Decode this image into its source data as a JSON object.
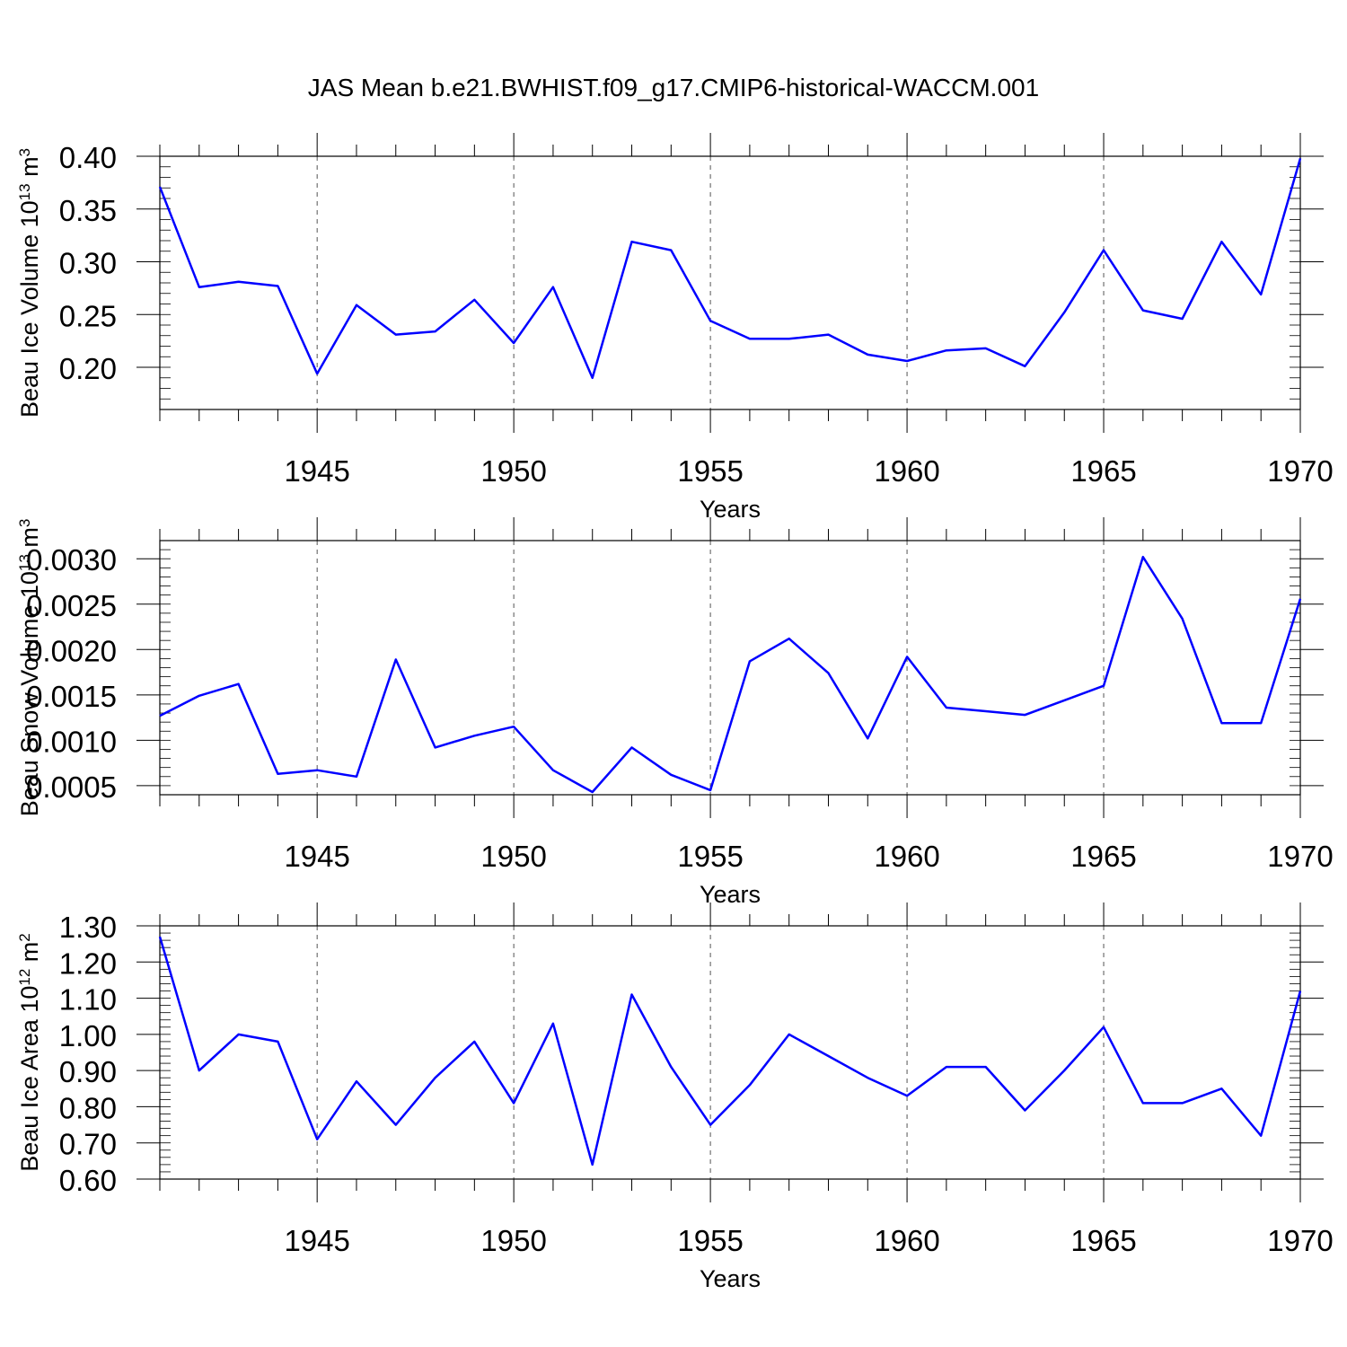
{
  "title": "JAS Mean b.e21.BWHIST.f09_g17.CMIP6-historical-WACCM.001",
  "chart_data": [
    {
      "type": "line",
      "title": "",
      "xlabel": "Years",
      "ylabel": "Beau Ice Volume 10",
      "ylabel_exp": "13",
      "ylabel_unit": " m",
      "ylabel_unit_exp": "3",
      "xlim": [
        1941,
        1970
      ],
      "ylim": [
        0.16,
        0.4
      ],
      "yticks": [
        "0.40",
        "0.35",
        "0.30",
        "0.25",
        "0.20"
      ],
      "ytick_values": [
        0.4,
        0.35,
        0.3,
        0.25,
        0.2
      ],
      "xticks": [
        1945,
        1950,
        1955,
        1960,
        1965,
        1970
      ],
      "grid": "vertical dashed",
      "color": "#0000ff",
      "x": [
        1941,
        1942,
        1943,
        1944,
        1945,
        1946,
        1947,
        1948,
        1949,
        1950,
        1951,
        1952,
        1953,
        1954,
        1955,
        1956,
        1957,
        1958,
        1959,
        1960,
        1961,
        1962,
        1963,
        1964,
        1965,
        1966,
        1967,
        1968,
        1969,
        1970
      ],
      "values": [
        0.371,
        0.276,
        0.281,
        0.277,
        0.194,
        0.259,
        0.231,
        0.234,
        0.264,
        0.223,
        0.276,
        0.19,
        0.319,
        0.311,
        0.244,
        0.227,
        0.227,
        0.231,
        0.212,
        0.206,
        0.216,
        0.218,
        0.201,
        0.252,
        0.311,
        0.254,
        0.246,
        0.319,
        0.269,
        0.398
      ]
    },
    {
      "type": "line",
      "title": "",
      "xlabel": "Years",
      "ylabel": "Beau Snow Volume 10",
      "ylabel_exp": "13",
      "ylabel_unit": " m",
      "ylabel_unit_exp": "3",
      "xlim": [
        1941,
        1970
      ],
      "ylim": [
        0.0004,
        0.0032
      ],
      "yticks": [
        "0.0030",
        "0.0025",
        "0.0020",
        "0.0015",
        "0.0010",
        "0.0005"
      ],
      "ytick_values": [
        0.003,
        0.0025,
        0.002,
        0.0015,
        0.001,
        0.0005
      ],
      "xticks": [
        1945,
        1950,
        1955,
        1960,
        1965,
        1970
      ],
      "grid": "vertical dashed",
      "color": "#0000ff",
      "x": [
        1941,
        1942,
        1943,
        1944,
        1945,
        1946,
        1947,
        1948,
        1949,
        1950,
        1951,
        1952,
        1953,
        1954,
        1955,
        1956,
        1957,
        1958,
        1959,
        1960,
        1961,
        1962,
        1963,
        1964,
        1965,
        1966,
        1967,
        1968,
        1969,
        1970
      ],
      "values": [
        0.00127,
        0.00149,
        0.00162,
        0.00063,
        0.00067,
        0.0006,
        0.00189,
        0.00092,
        0.00105,
        0.00115,
        0.00067,
        0.00043,
        0.00092,
        0.00062,
        0.00045,
        0.00187,
        0.00212,
        0.00174,
        0.00102,
        0.00192,
        0.00136,
        0.00132,
        0.00128,
        0.00144,
        0.0016,
        0.00302,
        0.00234,
        0.00119,
        0.00119,
        0.00256
      ]
    },
    {
      "type": "line",
      "title": "",
      "xlabel": "Years",
      "ylabel": "Beau Ice Area 10",
      "ylabel_exp": "12",
      "ylabel_unit": " m",
      "ylabel_unit_exp": "2",
      "xlim": [
        1941,
        1970
      ],
      "ylim": [
        0.6,
        1.3
      ],
      "yticks": [
        "1.30",
        "1.20",
        "1.10",
        "1.00",
        "0.90",
        "0.80",
        "0.70",
        "0.60"
      ],
      "ytick_values": [
        1.3,
        1.2,
        1.1,
        1.0,
        0.9,
        0.8,
        0.7,
        0.6
      ],
      "xticks": [
        1945,
        1950,
        1955,
        1960,
        1965,
        1970
      ],
      "grid": "vertical dashed",
      "color": "#0000ff",
      "x": [
        1941,
        1942,
        1943,
        1944,
        1945,
        1946,
        1947,
        1948,
        1949,
        1950,
        1951,
        1952,
        1953,
        1954,
        1955,
        1956,
        1957,
        1958,
        1959,
        1960,
        1961,
        1962,
        1963,
        1964,
        1965,
        1966,
        1967,
        1968,
        1969,
        1970
      ],
      "values": [
        1.27,
        0.9,
        1.0,
        0.98,
        0.71,
        0.87,
        0.75,
        0.88,
        0.98,
        0.81,
        1.03,
        0.64,
        1.11,
        0.91,
        0.75,
        0.86,
        1.0,
        0.94,
        0.88,
        0.83,
        0.91,
        0.91,
        0.79,
        0.9,
        1.02,
        0.81,
        0.81,
        0.85,
        0.72,
        1.12
      ]
    }
  ]
}
